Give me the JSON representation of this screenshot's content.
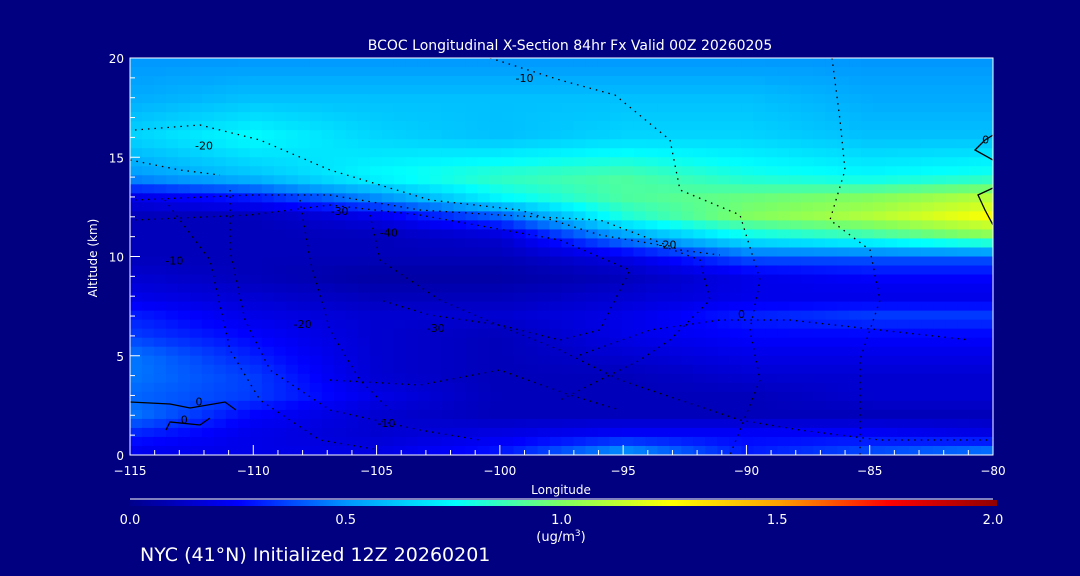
{
  "chart_data": {
    "type": "heatmap",
    "title": "BCOC Longitudinal X-Section 84hr  Fx Valid 00Z 20260205",
    "xlabel": "Longitude",
    "ylabel": "Altitude (km)",
    "xlim": [
      -115,
      -80
    ],
    "ylim": [
      0,
      20
    ],
    "xticks": [
      "-115",
      "-110",
      "-105",
      "-100",
      "-95",
      "-90",
      "-85",
      "-80"
    ],
    "xtick_values": [
      -115,
      -110,
      -105,
      -100,
      -95,
      -90,
      -85,
      -80
    ],
    "yticks": [
      "0",
      "5",
      "10",
      "15",
      "20"
    ],
    "ytick_values": [
      0,
      5,
      10,
      15,
      20
    ],
    "lon": [
      -115,
      -110,
      -105,
      -100,
      -95,
      -90,
      -85,
      -80
    ],
    "alt": [
      0,
      1,
      2,
      3,
      4,
      5,
      6,
      7,
      8,
      9,
      10,
      11,
      12,
      13,
      14,
      16,
      18,
      20
    ],
    "values": [
      [
        0.2,
        0.2,
        0.2,
        0.3,
        0.55,
        0.3,
        0.4,
        0.5
      ],
      [
        0.3,
        0.2,
        0.15,
        0.2,
        0.25,
        0.25,
        0.25,
        0.2
      ],
      [
        0.45,
        0.25,
        0.15,
        0.1,
        0.1,
        0.1,
        0.1,
        0.1
      ],
      [
        0.42,
        0.35,
        0.2,
        0.1,
        0.1,
        0.1,
        0.15,
        0.15
      ],
      [
        0.45,
        0.35,
        0.15,
        0.1,
        0.1,
        0.15,
        0.15,
        0.15
      ],
      [
        0.45,
        0.3,
        0.15,
        0.1,
        0.15,
        0.2,
        0.2,
        0.2
      ],
      [
        0.35,
        0.25,
        0.15,
        0.1,
        0.2,
        0.25,
        0.25,
        0.25
      ],
      [
        0.3,
        0.2,
        0.15,
        0.15,
        0.2,
        0.3,
        0.35,
        0.35
      ],
      [
        0.2,
        0.15,
        0.1,
        0.1,
        0.15,
        0.2,
        0.2,
        0.2
      ],
      [
        0.15,
        0.1,
        0.05,
        0.05,
        0.1,
        0.2,
        0.25,
        0.25
      ],
      [
        0.1,
        0.1,
        0.1,
        0.1,
        0.2,
        0.4,
        0.4,
        0.4
      ],
      [
        0.1,
        0.1,
        0.1,
        0.15,
        0.5,
        0.75,
        0.85,
        1.0
      ],
      [
        0.1,
        0.1,
        0.2,
        0.4,
        0.8,
        1.0,
        1.1,
        1.25
      ],
      [
        0.2,
        0.3,
        0.5,
        0.75,
        0.9,
        0.95,
        1.0,
        1.1
      ],
      [
        0.5,
        0.6,
        0.75,
        0.85,
        0.9,
        0.8,
        0.75,
        0.8
      ],
      [
        0.65,
        0.75,
        0.65,
        0.6,
        0.65,
        0.65,
        0.6,
        0.6
      ],
      [
        0.55,
        0.6,
        0.6,
        0.6,
        0.6,
        0.6,
        0.55,
        0.55
      ],
      [
        0.5,
        0.5,
        0.5,
        0.5,
        0.5,
        0.5,
        0.5,
        0.5
      ]
    ],
    "contour_labels": [
      {
        "text": "-10",
        "lon": -99,
        "alt": 19
      },
      {
        "text": "-20",
        "lon": -112,
        "alt": 15.6
      },
      {
        "text": "-30",
        "lon": -106.5,
        "alt": 12.3
      },
      {
        "text": "-40",
        "lon": -104.5,
        "alt": 11.2
      },
      {
        "text": "-10",
        "lon": -113.2,
        "alt": 9.8
      },
      {
        "text": "-20",
        "lon": -108,
        "alt": 6.6
      },
      {
        "text": "-30",
        "lon": -102.6,
        "alt": 6.4
      },
      {
        "text": "-20",
        "lon": -93.2,
        "alt": 10.6
      },
      {
        "text": "0",
        "lon": -90.2,
        "alt": 7.1
      },
      {
        "text": "-10",
        "lon": -104.6,
        "alt": 1.6
      },
      {
        "text": "0",
        "lon": -112.2,
        "alt": 2.7
      },
      {
        "text": "0",
        "lon": -112.8,
        "alt": 1.8
      },
      {
        "text": "0",
        "lon": -80.3,
        "alt": 15.9
      }
    ],
    "colorbar": {
      "min": 0.0,
      "max": 2.0,
      "ticks": [
        "0.0",
        "0.5",
        "1.0",
        "1.5",
        "2.0"
      ],
      "tick_values": [
        0,
        0.5,
        1.0,
        1.5,
        2.0
      ],
      "units": "(ug/m",
      "units_sup": "3",
      "units_close": ")",
      "colors": [
        "#00008c",
        "#0000ff",
        "#0096ff",
        "#00ffff",
        "#80ff60",
        "#ffff00",
        "#ffa000",
        "#ff0000",
        "#900000"
      ]
    }
  },
  "footer": "NYC (41°N) Initialized 12Z 20260201"
}
